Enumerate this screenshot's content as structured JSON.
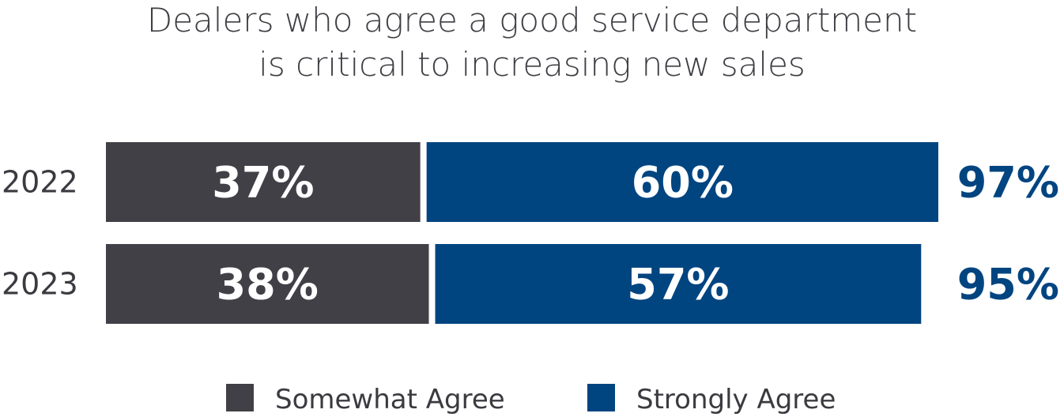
{
  "chart_data": {
    "type": "bar",
    "orientation": "horizontal",
    "stacked": true,
    "title_lines": [
      "Dealers who agree a good service department",
      "is critical to increasing new sales"
    ],
    "categories": [
      "2022",
      "2023"
    ],
    "series": [
      {
        "name": "Somewhat Agree",
        "values": [
          37,
          38
        ],
        "labels": [
          "37%",
          "38%"
        ],
        "color": "#414047"
      },
      {
        "name": "Strongly Agree",
        "values": [
          60,
          57
        ],
        "labels": [
          "60%",
          "57%"
        ],
        "color": "#004480"
      }
    ],
    "totals": {
      "values": [
        97,
        95
      ],
      "labels": [
        "97%",
        "95%"
      ],
      "color": "#004480"
    },
    "xlim": [
      0,
      97
    ],
    "grid": false,
    "legend_position": "bottom"
  }
}
